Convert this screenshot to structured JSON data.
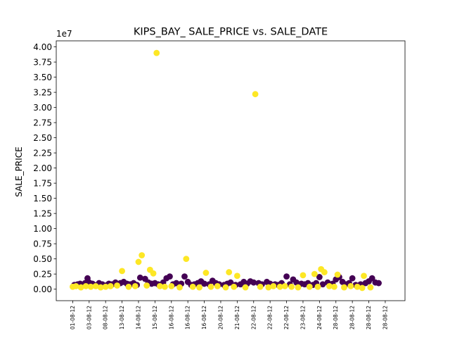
{
  "chart_data": {
    "type": "scatter",
    "title": "KIPS_BAY_ SALE_PRICE vs. SALE_DATE",
    "xlabel": "",
    "ylabel": "SALE_PRICE",
    "y_offset_text": "1e7",
    "ylim": [
      -1900000,
      41000000
    ],
    "y_ticks": [
      0,
      2500000,
      5000000,
      7500000,
      10000000,
      12500000,
      15000000,
      17500000,
      20000000,
      22500000,
      25000000,
      27500000,
      30000000,
      32500000,
      35000000,
      37500000,
      40000000
    ],
    "y_tick_labels": [
      "0.00",
      "0.25",
      "0.50",
      "0.75",
      "1.00",
      "1.25",
      "1.50",
      "1.75",
      "2.00",
      "2.25",
      "2.50",
      "2.75",
      "3.00",
      "3.25",
      "3.50",
      "3.75",
      "4.00"
    ],
    "x_tick_labels": [
      "01-08-12",
      "03-08-12",
      "08-08-12",
      "13-08-12",
      "14-08-12",
      "15-08-12",
      "16-08-12",
      "16-08-12",
      "16-08-12",
      "20-08-12",
      "21-08-12",
      "22-08-12",
      "22-08-12",
      "22-08-12",
      "23-08-12",
      "24-08-12",
      "28-08-12",
      "28-08-12",
      "28-08-12",
      "28-08-12"
    ],
    "xlim": [
      -1,
      20.2
    ],
    "grid": false,
    "series": [
      {
        "color": "#440154",
        "points": [
          [
            0.1,
            700000
          ],
          [
            0.3,
            800000
          ],
          [
            0.45,
            900000
          ],
          [
            0.6,
            700000
          ],
          [
            0.75,
            1000000
          ],
          [
            0.9,
            1800000
          ],
          [
            1.0,
            1100000
          ],
          [
            1.2,
            900000
          ],
          [
            1.3,
            700000
          ],
          [
            1.6,
            1000000
          ],
          [
            1.8,
            800000
          ],
          [
            2.1,
            700000
          ],
          [
            2.2,
            900000
          ],
          [
            2.4,
            800000
          ],
          [
            2.6,
            1100000
          ],
          [
            2.9,
            1000000
          ],
          [
            3.1,
            1200000
          ],
          [
            3.3,
            900000
          ],
          [
            3.5,
            800000
          ],
          [
            3.7,
            1000000
          ],
          [
            3.9,
            700000
          ],
          [
            4.1,
            1900000
          ],
          [
            4.4,
            1700000
          ],
          [
            4.6,
            1100000
          ],
          [
            4.8,
            900000
          ],
          [
            5.0,
            1000000
          ],
          [
            5.2,
            800000
          ],
          [
            5.5,
            1100000
          ],
          [
            5.7,
            1800000
          ],
          [
            5.9,
            2100000
          ],
          [
            6.1,
            800000
          ],
          [
            6.3,
            1000000
          ],
          [
            6.6,
            900000
          ],
          [
            6.8,
            2100000
          ],
          [
            7.0,
            1200000
          ],
          [
            7.2,
            700000
          ],
          [
            7.4,
            800000
          ],
          [
            7.6,
            1000000
          ],
          [
            7.8,
            1300000
          ],
          [
            8.0,
            900000
          ],
          [
            8.3,
            800000
          ],
          [
            8.5,
            1400000
          ],
          [
            8.7,
            1000000
          ],
          [
            8.9,
            800000
          ],
          [
            9.2,
            700000
          ],
          [
            9.4,
            900000
          ],
          [
            9.6,
            1100000
          ],
          [
            9.9,
            700000
          ],
          [
            10.2,
            800000
          ],
          [
            10.4,
            1200000
          ],
          [
            10.6,
            900000
          ],
          [
            10.8,
            1300000
          ],
          [
            11.0,
            1100000
          ],
          [
            11.3,
            1000000
          ],
          [
            11.5,
            800000
          ],
          [
            11.8,
            1200000
          ],
          [
            12.0,
            900000
          ],
          [
            12.3,
            800000
          ],
          [
            12.5,
            700000
          ],
          [
            12.7,
            1000000
          ],
          [
            13.0,
            2100000
          ],
          [
            13.2,
            800000
          ],
          [
            13.4,
            1600000
          ],
          [
            13.6,
            1100000
          ],
          [
            13.9,
            900000
          ],
          [
            14.1,
            800000
          ],
          [
            14.3,
            1000000
          ],
          [
            14.6,
            700000
          ],
          [
            14.8,
            1000000
          ],
          [
            15.0,
            2000000
          ],
          [
            15.2,
            800000
          ],
          [
            15.5,
            1100000
          ],
          [
            15.8,
            900000
          ],
          [
            16.0,
            1600000
          ],
          [
            16.2,
            2000000
          ],
          [
            16.4,
            1200000
          ],
          [
            16.6,
            800000
          ],
          [
            16.8,
            1000000
          ],
          [
            17.0,
            1800000
          ],
          [
            17.2,
            700000
          ],
          [
            17.5,
            800000
          ],
          [
            17.8,
            1000000
          ],
          [
            18.0,
            1300000
          ],
          [
            18.2,
            1800000
          ],
          [
            18.4,
            1100000
          ],
          [
            18.6,
            1000000
          ]
        ]
      },
      {
        "color": "#fde725",
        "points": [
          [
            0.0,
            400000
          ],
          [
            0.2,
            500000
          ],
          [
            0.5,
            300000
          ],
          [
            0.8,
            500000
          ],
          [
            1.1,
            400000
          ],
          [
            1.4,
            500000
          ],
          [
            1.7,
            300000
          ],
          [
            2.0,
            400000
          ],
          [
            2.3,
            500000
          ],
          [
            2.7,
            600000
          ],
          [
            3.0,
            3000000
          ],
          [
            3.4,
            400000
          ],
          [
            3.8,
            500000
          ],
          [
            4.0,
            4500000
          ],
          [
            4.2,
            5600000
          ],
          [
            4.5,
            600000
          ],
          [
            4.7,
            3200000
          ],
          [
            4.9,
            2600000
          ],
          [
            5.1,
            39000000
          ],
          [
            5.3,
            500000
          ],
          [
            5.6,
            400000
          ],
          [
            6.0,
            500000
          ],
          [
            6.5,
            300000
          ],
          [
            6.9,
            5000000
          ],
          [
            7.3,
            400000
          ],
          [
            7.7,
            300000
          ],
          [
            8.1,
            2700000
          ],
          [
            8.4,
            400000
          ],
          [
            8.8,
            500000
          ],
          [
            9.3,
            300000
          ],
          [
            9.5,
            2800000
          ],
          [
            9.8,
            400000
          ],
          [
            10.0,
            2200000
          ],
          [
            10.5,
            300000
          ],
          [
            11.1,
            32200000
          ],
          [
            11.4,
            400000
          ],
          [
            11.9,
            300000
          ],
          [
            12.2,
            500000
          ],
          [
            12.6,
            400000
          ],
          [
            12.9,
            500000
          ],
          [
            13.3,
            400000
          ],
          [
            13.7,
            300000
          ],
          [
            14.0,
            2300000
          ],
          [
            14.4,
            400000
          ],
          [
            14.7,
            2500000
          ],
          [
            14.9,
            400000
          ],
          [
            15.1,
            3300000
          ],
          [
            15.3,
            2800000
          ],
          [
            15.6,
            500000
          ],
          [
            15.9,
            400000
          ],
          [
            16.1,
            2400000
          ],
          [
            16.5,
            300000
          ],
          [
            16.9,
            500000
          ],
          [
            17.3,
            400000
          ],
          [
            17.6,
            200000
          ],
          [
            17.7,
            2200000
          ],
          [
            18.1,
            300000
          ]
        ]
      }
    ]
  }
}
